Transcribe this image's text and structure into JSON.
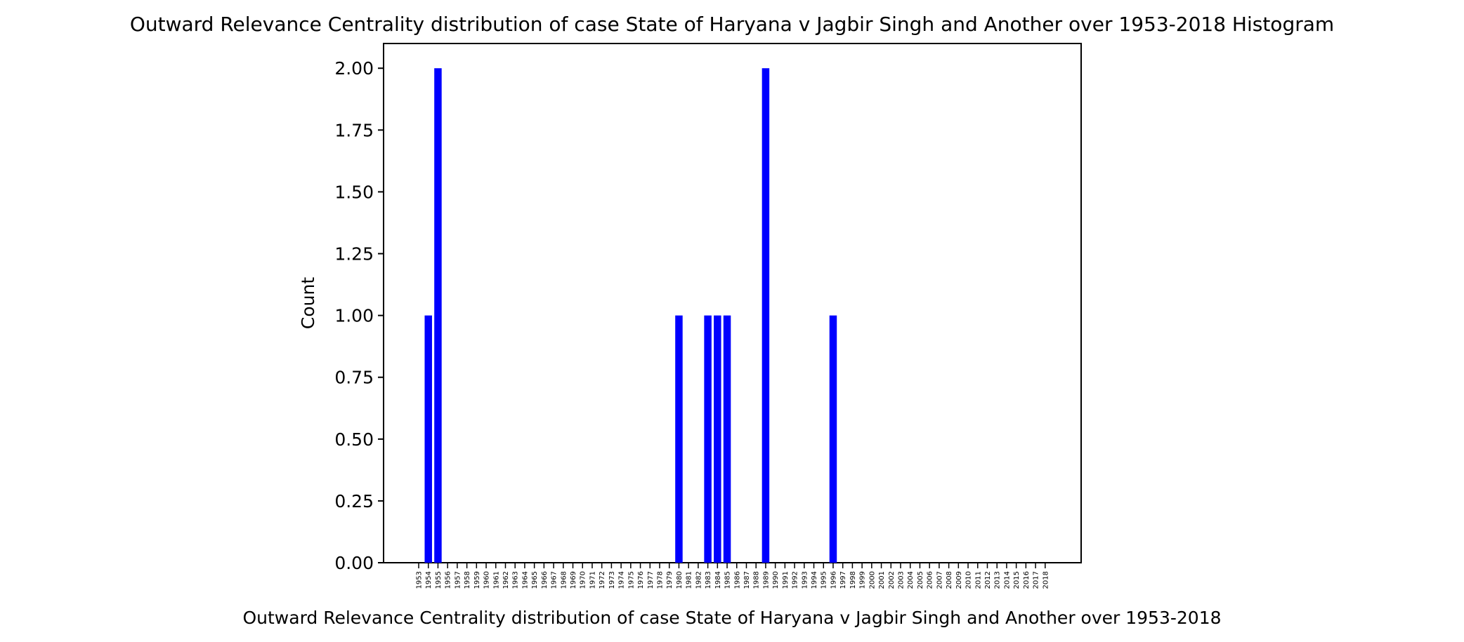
{
  "chart_data": {
    "type": "bar",
    "title": "Outward Relevance Centrality distribution of case State of Haryana v Jagbir Singh and Another over 1953-2018 Histogram",
    "xlabel": "Outward Relevance Centrality distribution of case State of Haryana v Jagbir Singh and Another over 1953-2018",
    "ylabel": "Count",
    "categories": [
      "1953",
      "1954",
      "1955",
      "1956",
      "1957",
      "1958",
      "1959",
      "1960",
      "1961",
      "1962",
      "1963",
      "1964",
      "1965",
      "1966",
      "1967",
      "1968",
      "1969",
      "1970",
      "1971",
      "1972",
      "1973",
      "1974",
      "1975",
      "1976",
      "1977",
      "1978",
      "1979",
      "1980",
      "1981",
      "1982",
      "1983",
      "1984",
      "1985",
      "1986",
      "1987",
      "1988",
      "1989",
      "1990",
      "1991",
      "1992",
      "1993",
      "1994",
      "1995",
      "1996",
      "1997",
      "1998",
      "1999",
      "2000",
      "2001",
      "2002",
      "2003",
      "2004",
      "2005",
      "2006",
      "2007",
      "2008",
      "2009",
      "2010",
      "2011",
      "2012",
      "2013",
      "2014",
      "2015",
      "2016",
      "2017",
      "2018"
    ],
    "values": [
      0,
      1,
      2,
      0,
      0,
      0,
      0,
      0,
      0,
      0,
      0,
      0,
      0,
      0,
      0,
      0,
      0,
      0,
      0,
      0,
      0,
      0,
      0,
      0,
      0,
      0,
      0,
      1,
      0,
      0,
      1,
      1,
      1,
      0,
      0,
      0,
      2,
      0,
      0,
      0,
      0,
      0,
      0,
      1,
      0,
      0,
      0,
      0,
      0,
      0,
      0,
      0,
      0,
      0,
      0,
      0,
      0,
      0,
      0,
      0,
      0,
      0,
      0,
      0,
      0,
      0
    ],
    "ylim": [
      0,
      2.1
    ],
    "yticks": [
      "0.00",
      "0.25",
      "0.50",
      "0.75",
      "1.00",
      "1.25",
      "1.50",
      "1.75",
      "2.00"
    ],
    "bar_color": "#0000ff",
    "grid": false,
    "legend": "none"
  }
}
